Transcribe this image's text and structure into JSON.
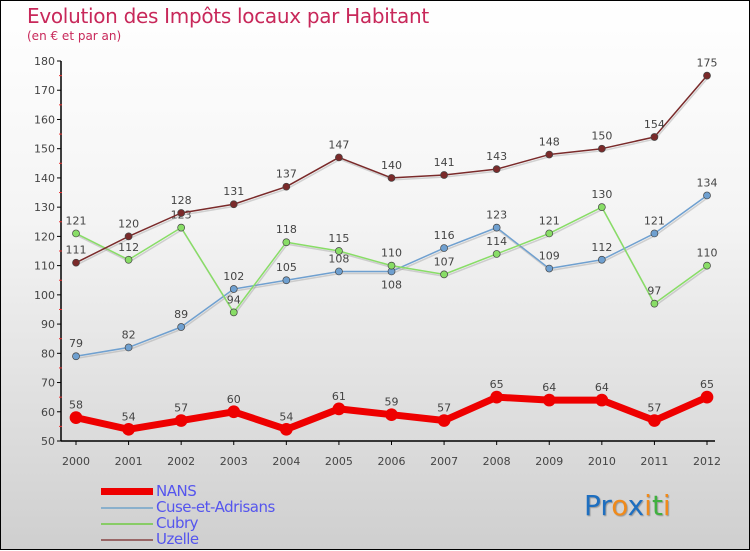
{
  "chart_data": {
    "type": "line",
    "title": "Evolution des Impôts locaux par Habitant",
    "subtitle": "(en € et par an)",
    "x": [
      "2000",
      "2001",
      "2002",
      "2003",
      "2004",
      "2005",
      "2006",
      "2007",
      "2008",
      "2009",
      "2010",
      "2011",
      "2012"
    ],
    "ylim": [
      50,
      180
    ],
    "yticks": [
      50,
      60,
      70,
      80,
      90,
      100,
      110,
      120,
      130,
      140,
      150,
      160,
      170,
      180
    ],
    "grid": false,
    "legend_position": "bottom-left",
    "series": [
      {
        "name": "NANS",
        "color": "#ee0000",
        "width": 7,
        "values": [
          58,
          54,
          57,
          60,
          54,
          61,
          59,
          57,
          65,
          64,
          64,
          57,
          65
        ]
      },
      {
        "name": "Cuse-et-Adrisans",
        "color": "#6fa0d0",
        "width": 1.5,
        "values": [
          79,
          82,
          89,
          102,
          105,
          108,
          108,
          116,
          123,
          109,
          112,
          121,
          134
        ]
      },
      {
        "name": "Cubry",
        "color": "#88dd66",
        "width": 1.5,
        "values": [
          121,
          112,
          123,
          94,
          118,
          115,
          110,
          107,
          114,
          121,
          130,
          97,
          110
        ]
      },
      {
        "name": "Uzelle",
        "color": "#7a2a2a",
        "width": 1.5,
        "values": [
          111,
          120,
          128,
          131,
          137,
          147,
          140,
          141,
          143,
          148,
          150,
          154,
          175
        ]
      }
    ]
  },
  "legend_colors": {
    "NANS": "#ee0000",
    "Cuse-et-Adrisans": "#8ab0cc",
    "Cubry": "#88cc66",
    "Uzelle": "#996666"
  },
  "logo": {
    "text": "Proxiti"
  }
}
